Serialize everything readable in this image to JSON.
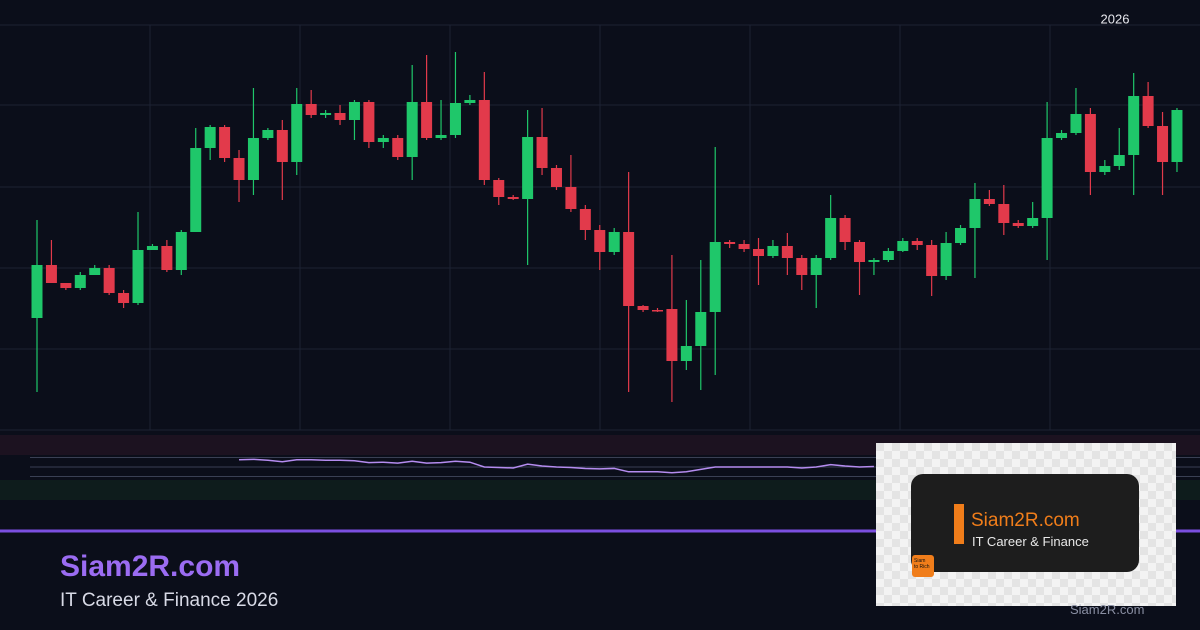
{
  "chart_data": {
    "type": "candlestick",
    "period_label": "2026",
    "open": [
      112,
      165,
      147,
      142,
      155,
      162,
      137,
      127,
      180,
      184,
      160,
      198,
      282,
      303,
      272,
      250,
      292,
      300,
      268,
      326,
      315,
      317,
      310,
      328,
      288,
      292,
      273,
      328,
      292,
      295,
      327,
      330,
      250,
      233,
      231,
      293,
      262,
      243,
      221,
      200,
      178,
      198,
      124,
      120,
      121,
      69,
      84,
      118,
      188,
      186,
      181,
      174,
      184,
      172,
      155,
      172,
      212,
      188,
      168,
      170,
      179,
      189,
      185,
      154,
      187,
      202,
      231,
      226,
      207,
      204,
      212,
      292,
      297,
      316,
      258,
      264,
      275,
      334,
      304,
      268
    ],
    "high": [
      210,
      190,
      147,
      158,
      165,
      165,
      140,
      218,
      186,
      190,
      200,
      302,
      305,
      305,
      280,
      342,
      302,
      310,
      342,
      340,
      320,
      325,
      330,
      330,
      295,
      295,
      365,
      375,
      330,
      378,
      335,
      358,
      252,
      235,
      320,
      322,
      265,
      275,
      225,
      205,
      202,
      258,
      125,
      122,
      175,
      130,
      170,
      283,
      190,
      190,
      192,
      190,
      197,
      175,
      175,
      235,
      215,
      190,
      172,
      182,
      192,
      192,
      190,
      198,
      205,
      247,
      240,
      245,
      210,
      228,
      328,
      300,
      342,
      322,
      270,
      302,
      357,
      348,
      318,
      322
    ],
    "low": [
      38,
      147,
      140,
      140,
      155,
      135,
      122,
      125,
      180,
      158,
      155,
      198,
      270,
      268,
      228,
      235,
      290,
      230,
      255,
      312,
      312,
      305,
      290,
      282,
      282,
      270,
      250,
      290,
      290,
      292,
      325,
      245,
      225,
      230,
      165,
      255,
      240,
      218,
      190,
      160,
      175,
      38,
      118,
      118,
      28,
      60,
      40,
      55,
      182,
      178,
      145,
      172,
      155,
      140,
      122,
      170,
      180,
      135,
      155,
      168,
      178,
      180,
      134,
      150,
      185,
      152,
      224,
      195,
      202,
      202,
      170,
      290,
      295,
      235,
      255,
      260,
      235,
      302,
      235,
      258
    ],
    "close": [
      165,
      147,
      142,
      155,
      162,
      137,
      127,
      180,
      184,
      160,
      198,
      282,
      303,
      272,
      250,
      292,
      300,
      268,
      326,
      315,
      317,
      310,
      328,
      288,
      292,
      273,
      328,
      292,
      295,
      327,
      330,
      250,
      233,
      231,
      293,
      262,
      243,
      221,
      200,
      178,
      198,
      124,
      120,
      119,
      69,
      84,
      118,
      188,
      186,
      181,
      174,
      184,
      172,
      155,
      172,
      212,
      188,
      168,
      170,
      179,
      189,
      185,
      154,
      187,
      202,
      231,
      226,
      207,
      204,
      212,
      292,
      297,
      316,
      258,
      264,
      275,
      334,
      304,
      268,
      320
    ],
    "up_color": "#1fc76a",
    "down_color": "#e23a4b",
    "ylim": [
      0,
      405
    ],
    "yticks": [
      0,
      81,
      162,
      243,
      325,
      405
    ],
    "grid": true,
    "indicator": {
      "color": "#b58cf0",
      "ylim": [
        0,
        100
      ],
      "levels": [
        70,
        50,
        30
      ],
      "values": [
        null,
        null,
        null,
        null,
        null,
        null,
        null,
        null,
        null,
        null,
        null,
        null,
        null,
        null,
        65,
        66,
        64,
        61,
        65,
        65,
        64,
        64,
        63,
        59,
        60,
        58,
        62,
        58,
        59,
        62,
        60,
        50,
        49,
        48,
        56,
        52,
        50,
        49,
        47,
        46,
        47,
        40,
        40,
        40,
        38,
        40,
        45,
        50,
        50,
        50,
        50,
        50,
        50,
        48,
        50,
        55,
        52,
        50,
        51,
        null,
        null,
        null,
        null,
        null,
        null,
        null,
        null,
        null,
        null,
        null,
        null,
        null,
        null,
        null,
        null,
        null,
        null,
        null,
        null,
        null
      ]
    }
  },
  "footer": {
    "title": "Siam2R.com",
    "subtitle": "IT Career & Finance 2026"
  },
  "logo_card": {
    "title": "Siam2R.com",
    "subtitle": "IT Career & Finance",
    "icon_text": [
      "Siam",
      "to Rich"
    ],
    "watermark": "Siam2R.com"
  }
}
